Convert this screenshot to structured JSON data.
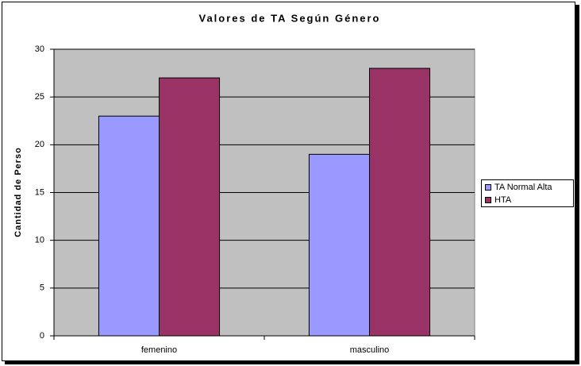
{
  "chart_data": {
    "type": "bar",
    "title": "Valores de TA Según Género",
    "y_label": "Cantidad de Perso",
    "categories": [
      "femenino",
      "masculino"
    ],
    "series": [
      {
        "name": "TA Normal Alta",
        "color": "#9999ff",
        "values": [
          23,
          19
        ]
      },
      {
        "name": "HTA",
        "color": "#993366",
        "values": [
          27,
          28
        ]
      }
    ],
    "ylim": [
      0,
      30
    ],
    "yticks": [
      0,
      5,
      10,
      15,
      20,
      25,
      30
    ],
    "grid": true,
    "legend": "right"
  }
}
